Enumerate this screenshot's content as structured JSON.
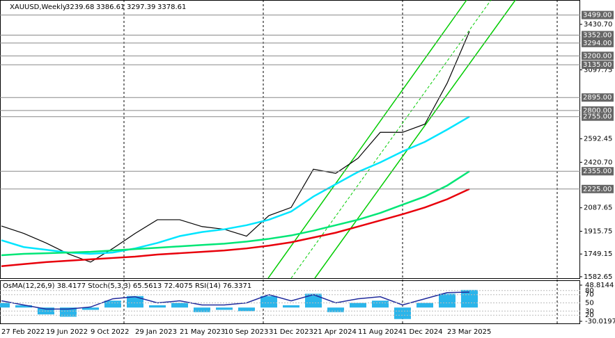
{
  "chart_data": [
    {
      "type": "line",
      "title": "XAUUSD,Weekly",
      "ohlc": [
        3239.68,
        3386.61,
        3297.39,
        3378.61
      ],
      "categories": [
        "27 Feb 2022",
        null,
        "19 Jun 2022",
        null,
        "9 Oct 2022",
        null,
        "29 Jan 2023",
        null,
        "21 May 2023",
        null,
        "10 Sep 2023",
        null,
        "31 Dec 2023",
        null,
        "21 Apr 2024",
        null,
        "11 Aug 2024",
        null,
        "1 Dec 2024",
        null,
        "23 Mar 2025",
        null
      ],
      "series": [
        {
          "color": "#000000",
          "values": [
            1954,
            1900,
            1830,
            1750,
            1690,
            1790,
            1900,
            2000,
            2000,
            1950,
            1930,
            1880,
            2030,
            2090,
            2370,
            2340,
            2450,
            2640,
            2640,
            2700,
            3000,
            3378.61
          ]
        },
        {
          "color": "#00e5ff",
          "values": [
            1850,
            1800,
            1780,
            1760,
            1750,
            1760,
            1790,
            1830,
            1880,
            1910,
            1930,
            1960,
            2000,
            2060,
            2170,
            2260,
            2350,
            2420,
            2500,
            2570,
            2660,
            2755
          ]
        },
        {
          "color": "#00e676",
          "values": [
            1740,
            1750,
            1755,
            1760,
            1765,
            1775,
            1785,
            1795,
            1805,
            1815,
            1825,
            1840,
            1860,
            1885,
            1920,
            1960,
            2000,
            2050,
            2110,
            2170,
            2250,
            2355
          ]
        },
        {
          "color": "#e8000b",
          "values": [
            1660,
            1675,
            1690,
            1700,
            1710,
            1720,
            1730,
            1745,
            1755,
            1765,
            1775,
            1790,
            1810,
            1835,
            1870,
            1905,
            1950,
            1995,
            2040,
            2090,
            2150,
            2225
          ]
        }
      ],
      "ylim": [
        1572,
        3609
      ],
      "yticks": [
        {
          "value": 3430.7,
          "label": "3430.70"
        },
        3097.75,
        2592.45,
        {
          "value": 2420.7,
          "label": "2420.70"
        },
        2087.65,
        1915.75,
        1749.15,
        1582.65
      ],
      "levels": [
        {
          "value": 3499,
          "label": "3499.00"
        },
        {
          "value": 3352,
          "label": "3352.00"
        },
        {
          "value": 3294,
          "label": "3294.00"
        },
        {
          "value": 3200,
          "label": "3200.00"
        },
        {
          "value": 3135,
          "label": "3135.00"
        },
        {
          "value": 2895,
          "label": "2895.00"
        },
        {
          "value": 2800,
          "label": "2800.00"
        },
        {
          "value": 2755,
          "label": "2755.00"
        },
        {
          "value": 2355,
          "label": "2355.00"
        },
        {
          "value": 2225,
          "label": "2225.00"
        }
      ]
    },
    {
      "type": "bar",
      "title": "OsMA(12,26,9) 38.4177 Stoch(5,3,3) 65.5613 72.4075 RSI(14) 76.3371",
      "color": "#2bb5ea",
      "values": [
        10,
        5,
        -15,
        -20,
        -5,
        15,
        25,
        5,
        10,
        -10,
        -5,
        -8,
        25,
        5,
        30,
        -10,
        10,
        15,
        -25,
        10,
        30,
        38.4177
      ],
      "ylim": [
        -30.0197,
        48.8144
      ],
      "yticks": [
        48.8144,
        -30.0197
      ],
      "series": [
        {
          "color": "#1f2a9c",
          "axis": "y2",
          "values": [
            55,
            45,
            35,
            35,
            40,
            60,
            65,
            50,
            55,
            45,
            45,
            50,
            70,
            55,
            70,
            50,
            60,
            65,
            45,
            60,
            75,
            76.3371
          ]
        }
      ],
      "y2lim": [
        0,
        100
      ],
      "y2ticks": [
        80,
        70,
        50,
        30,
        20
      ]
    }
  ]
}
